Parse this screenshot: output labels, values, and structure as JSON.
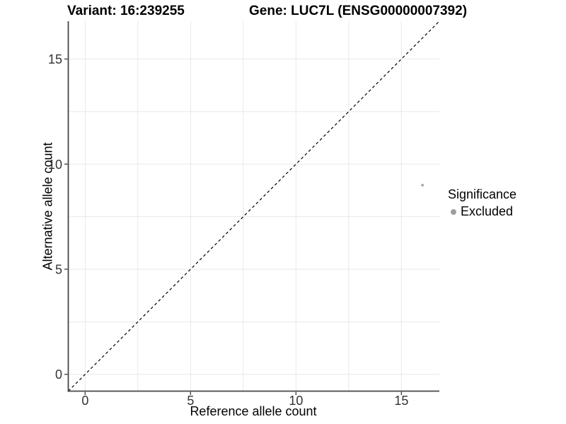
{
  "chart_data": {
    "type": "scatter",
    "title": {
      "variant": "Variant: 16:239255",
      "gene": "Gene: LUC7L (ENSG00000007392)"
    },
    "xlabel": "Reference allele count",
    "ylabel": "Alternative allele count",
    "xlim": [
      -0.8,
      16.8
    ],
    "ylim": [
      -0.8,
      16.8
    ],
    "x_ticks": [
      0,
      5,
      10,
      15
    ],
    "y_ticks": [
      0,
      5,
      10,
      15
    ],
    "grid": "on",
    "grid_breaks": [
      0,
      2.5,
      5,
      7.5,
      10,
      12.5,
      15
    ],
    "reference_line": {
      "type": "identity",
      "style": "dashed",
      "color": "#000000"
    },
    "series": [
      {
        "name": "Excluded",
        "color": "#a6a6a6",
        "points": [
          {
            "x": 16,
            "y": 9
          }
        ]
      }
    ],
    "legend": {
      "title": "Significance",
      "position": "right",
      "entries": [
        {
          "label": "Excluded",
          "color": "#9e9e9e",
          "marker": "circle"
        }
      ]
    },
    "colors": {
      "gridline": "#e8e8e8",
      "axis": "#474747",
      "tick_label": "#333333",
      "title": "#000000",
      "background": "#ffffff"
    }
  }
}
